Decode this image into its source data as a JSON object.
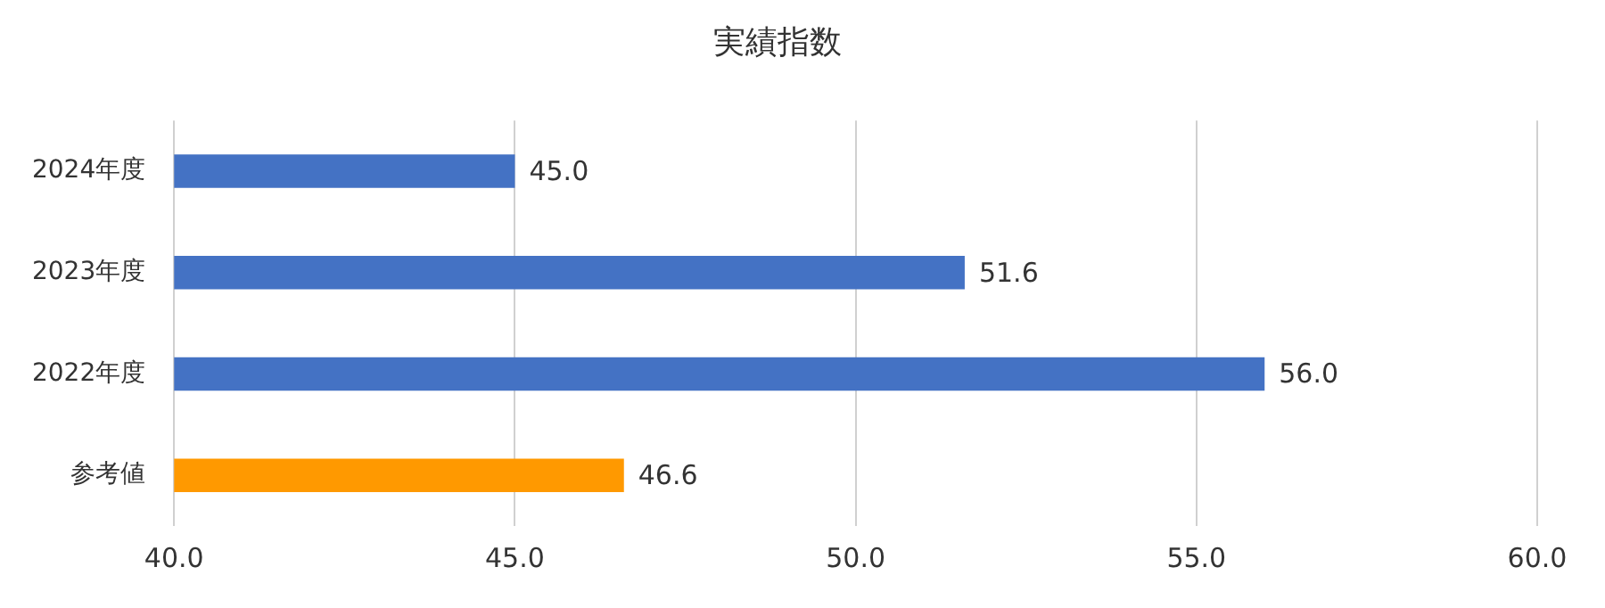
{
  "chart_data": {
    "type": "bar",
    "orientation": "horizontal",
    "title": "実績指数",
    "categories": [
      "2024年度",
      "2023年度",
      "2022年度",
      "参考値"
    ],
    "values": [
      45.0,
      51.6,
      56.0,
      46.6
    ],
    "colors": [
      "#4472c4",
      "#4472c4",
      "#4472c4",
      "#ff9900"
    ],
    "value_labels": [
      "45.0",
      "51.6",
      "56.0",
      "46.6"
    ],
    "xlim": [
      40,
      60
    ],
    "xticks": [
      {
        "value": 40,
        "label": "40.0"
      },
      {
        "value": 45,
        "label": "45.0"
      },
      {
        "value": 50,
        "label": "50.0"
      },
      {
        "value": 55,
        "label": "55.0"
      },
      {
        "value": 60,
        "label": "60.0"
      }
    ],
    "grid": "x",
    "legend": false
  }
}
